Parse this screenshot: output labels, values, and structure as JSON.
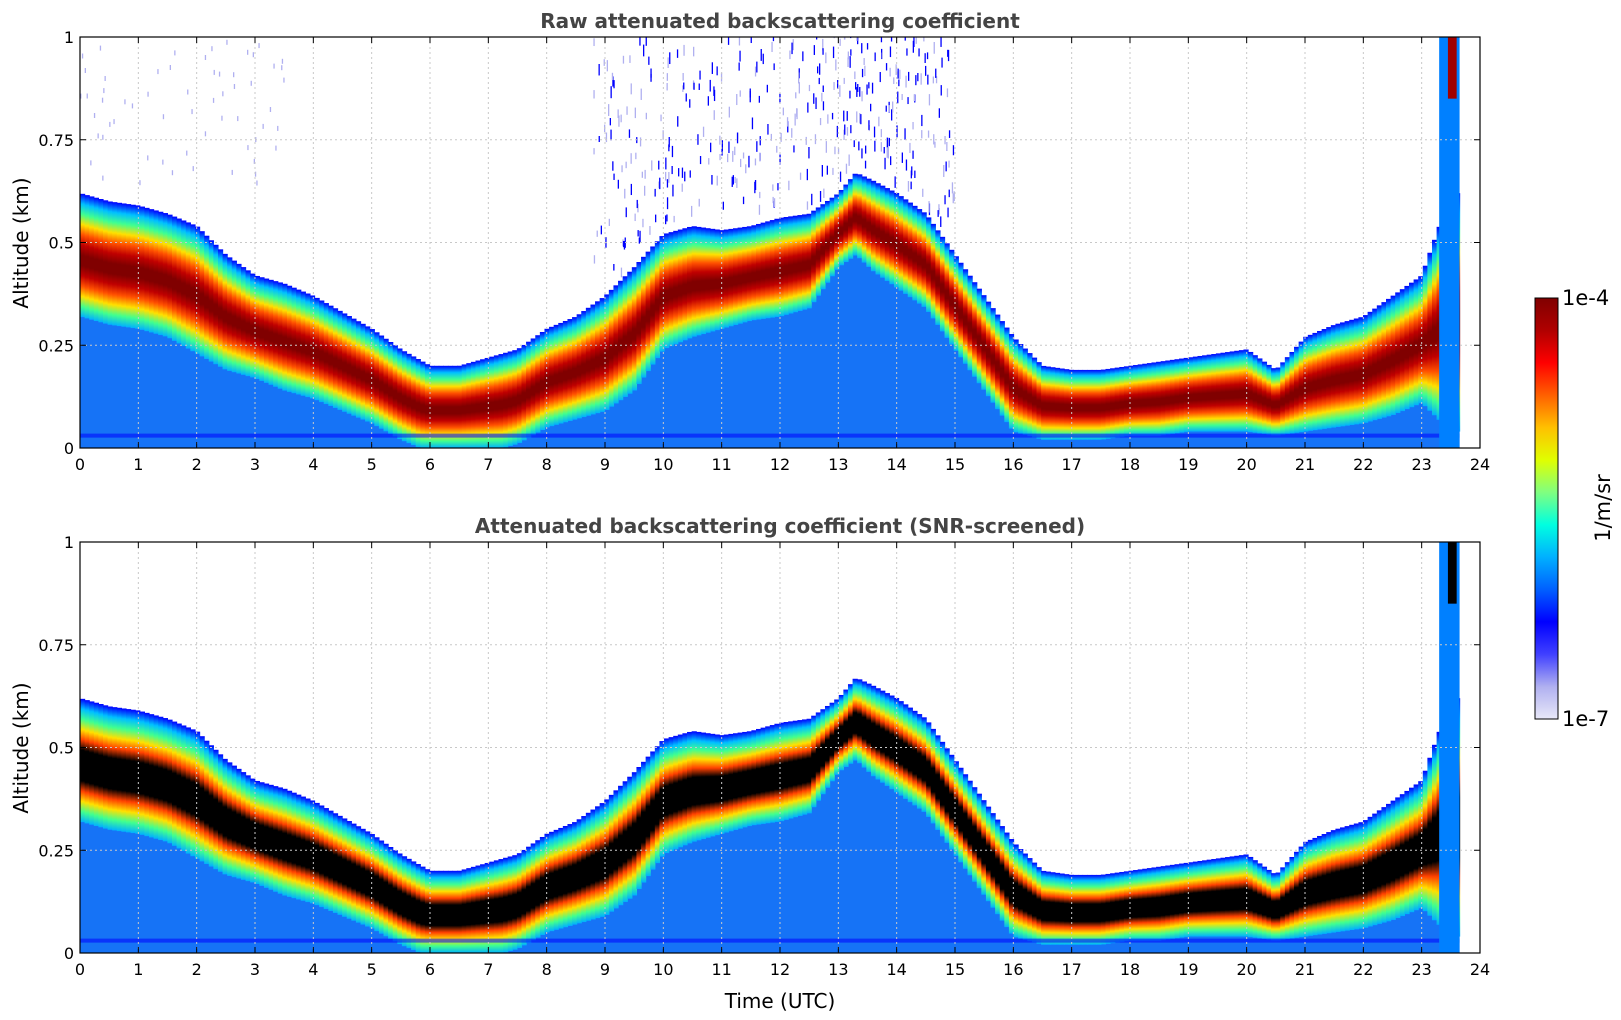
{
  "chart_data": [
    {
      "type": "heatmap",
      "title": "Raw attenuated backscattering coefficient",
      "xlabel": "",
      "ylabel": "Altitude (km)",
      "xlim": [
        0,
        24
      ],
      "ylim": [
        0,
        1
      ],
      "xticks": [
        "0",
        "1",
        "2",
        "3",
        "4",
        "5",
        "6",
        "7",
        "8",
        "9",
        "10",
        "11",
        "12",
        "13",
        "14",
        "15",
        "16",
        "17",
        "18",
        "19",
        "20",
        "21",
        "22",
        "23",
        "24"
      ],
      "yticks": [
        "0",
        "0.25",
        "0.5",
        "0.75",
        "1"
      ],
      "grid": true,
      "screened": false,
      "layer_profile": {
        "time_utc": [
          0,
          0.5,
          1,
          1.5,
          2,
          2.5,
          3,
          3.5,
          4,
          4.5,
          5,
          5.5,
          6,
          6.5,
          7,
          7.5,
          8,
          8.5,
          9,
          9.5,
          10,
          10.5,
          11,
          11.5,
          12,
          12.5,
          13,
          13.3,
          13.6,
          14,
          14.5,
          15,
          15.5,
          16,
          16.5,
          17,
          17.5,
          18,
          18.5,
          19,
          19.5,
          20,
          20.5,
          21,
          21.5,
          22,
          22.5,
          23,
          23.5
        ],
        "layer_top_km": [
          0.6,
          0.58,
          0.57,
          0.55,
          0.52,
          0.45,
          0.4,
          0.38,
          0.35,
          0.31,
          0.27,
          0.22,
          0.18,
          0.18,
          0.2,
          0.22,
          0.27,
          0.3,
          0.35,
          0.42,
          0.5,
          0.52,
          0.51,
          0.52,
          0.54,
          0.55,
          0.6,
          0.65,
          0.63,
          0.6,
          0.55,
          0.45,
          0.35,
          0.25,
          0.18,
          0.17,
          0.17,
          0.18,
          0.19,
          0.2,
          0.21,
          0.22,
          0.17,
          0.25,
          0.28,
          0.3,
          0.35,
          0.4,
          0.6
        ],
        "layer_bottom_km": [
          0.33,
          0.31,
          0.3,
          0.28,
          0.24,
          0.2,
          0.18,
          0.15,
          0.13,
          0.1,
          0.07,
          0.03,
          0,
          0,
          0,
          0.02,
          0.06,
          0.08,
          0.1,
          0.15,
          0.25,
          0.28,
          0.3,
          0.32,
          0.33,
          0.35,
          0.45,
          0.48,
          0.44,
          0.4,
          0.35,
          0.25,
          0.15,
          0.05,
          0.03,
          0.03,
          0.03,
          0.04,
          0.04,
          0.05,
          0.05,
          0.05,
          0.04,
          0.05,
          0.06,
          0.07,
          0.09,
          0.12,
          0.05
        ]
      }
    },
    {
      "type": "heatmap",
      "title": "Attenuated backscattering coefficient (SNR-screened)",
      "xlabel": "Time (UTC)",
      "ylabel": "Altitude (km)",
      "xlim": [
        0,
        24
      ],
      "ylim": [
        0,
        1
      ],
      "xticks": [
        "0",
        "1",
        "2",
        "3",
        "4",
        "5",
        "6",
        "7",
        "8",
        "9",
        "10",
        "11",
        "12",
        "13",
        "14",
        "15",
        "16",
        "17",
        "18",
        "19",
        "20",
        "21",
        "22",
        "23",
        "24"
      ],
      "yticks": [
        "0",
        "0.25",
        "0.5",
        "0.75",
        "1"
      ],
      "grid": true,
      "screened": true,
      "saturated_color": "#000000"
    }
  ],
  "colorbar": {
    "label": "1/m/sr",
    "max_label": "1e-4",
    "min_label": "1e-7",
    "scale": "log",
    "range": [
      1e-07,
      0.0001
    ],
    "colormap": [
      "#e8e8f8",
      "#b0b0f0",
      "#4040ff",
      "#0000ff",
      "#0060ff",
      "#00b0ff",
      "#00ffe0",
      "#80ff80",
      "#e0ff00",
      "#ffc000",
      "#ff6000",
      "#ff0000",
      "#b00000",
      "#800000"
    ]
  },
  "colors": {
    "title": "#444444",
    "grid": "#c8c8c8",
    "background": "#ffffff"
  }
}
